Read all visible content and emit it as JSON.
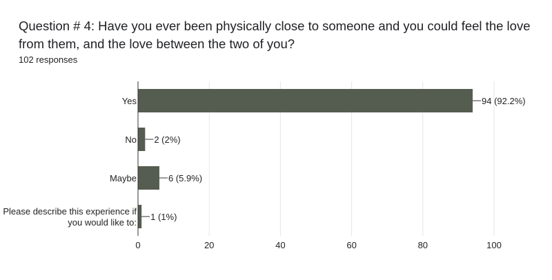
{
  "question": {
    "title": "Question # 4: Have you ever been physically close to someone and you could feel the love from them, and the love between the two of you?",
    "responses": "102 responses"
  },
  "colors": {
    "bar": "#555c50",
    "grid": "#e6e6e6",
    "axis": "#333333"
  },
  "chart_data": {
    "type": "bar",
    "orientation": "horizontal",
    "categories": [
      [
        "Yes"
      ],
      [
        "No"
      ],
      [
        "Maybe"
      ],
      [
        "Please describe this experience if",
        "you would like to:"
      ]
    ],
    "values": [
      94,
      2,
      6,
      1
    ],
    "data_labels": [
      "94 (92.2%)",
      "2 (2%)",
      "6 (5.9%)",
      "1 (1%)"
    ],
    "xlim": [
      0,
      100
    ],
    "xticks": [
      0,
      20,
      40,
      60,
      80,
      100
    ],
    "grid": true,
    "legend": "none"
  }
}
